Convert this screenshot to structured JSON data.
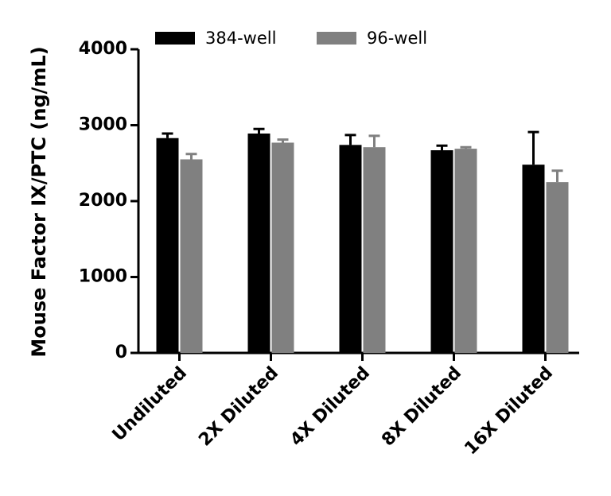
{
  "chart_data": {
    "type": "bar",
    "y_label": "Mouse Factor IX/PTC (ng/mL)",
    "categories": [
      "Undiluted",
      "2X Diluted",
      "4X Diluted",
      "8X Diluted",
      "16X Diluted"
    ],
    "series": [
      {
        "name": "384-well",
        "color": "#000000",
        "values": [
          2830,
          2890,
          2740,
          2670,
          2480
        ],
        "errors": [
          60,
          60,
          130,
          60,
          430
        ]
      },
      {
        "name": "96-well",
        "color": "#808080",
        "values": [
          2550,
          2770,
          2710,
          2690,
          2250
        ],
        "errors": [
          70,
          40,
          150,
          20,
          150
        ]
      }
    ],
    "ylim": [
      0,
      4000
    ],
    "yticks": [
      0,
      1000,
      2000,
      3000,
      4000
    ]
  }
}
